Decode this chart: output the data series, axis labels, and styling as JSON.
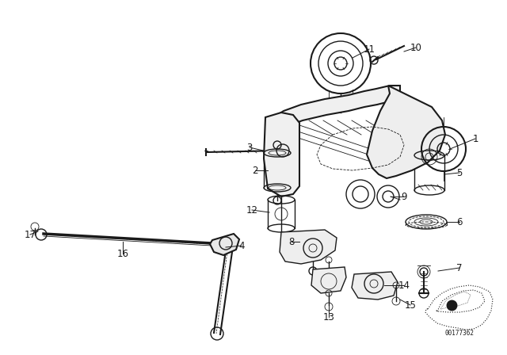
{
  "background_color": "#ffffff",
  "line_color": "#1a1a1a",
  "watermark": "00177362",
  "figsize": [
    6.4,
    4.48
  ],
  "dpi": 100
}
